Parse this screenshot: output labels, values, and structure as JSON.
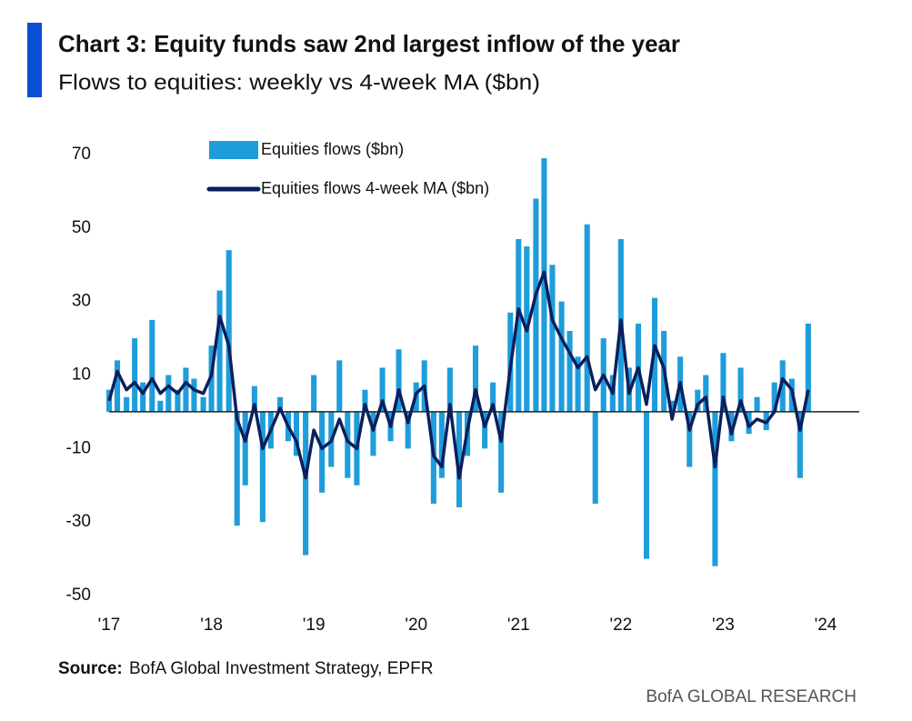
{
  "chart_data": {
    "type": "bar-line",
    "title": "Chart 3: Equity funds saw 2nd largest inflow of the year",
    "subtitle": "Flows to equities: weekly vs 4-week MA ($bn)",
    "source_label": "Source:",
    "source": "BofA Global Investment Strategy, EPFR",
    "credit": "BofA GLOBAL RESEARCH",
    "x": [
      2017.0,
      2017.08,
      2017.17,
      2017.25,
      2017.33,
      2017.42,
      2017.5,
      2017.58,
      2017.67,
      2017.75,
      2017.83,
      2017.92,
      2018.0,
      2018.08,
      2018.17,
      2018.25,
      2018.33,
      2018.42,
      2018.5,
      2018.58,
      2018.67,
      2018.75,
      2018.83,
      2018.92,
      2019.0,
      2019.08,
      2019.17,
      2019.25,
      2019.33,
      2019.42,
      2019.5,
      2019.58,
      2019.67,
      2019.75,
      2019.83,
      2019.92,
      2020.0,
      2020.08,
      2020.17,
      2020.25,
      2020.33,
      2020.42,
      2020.5,
      2020.58,
      2020.67,
      2020.75,
      2020.83,
      2020.92,
      2021.0,
      2021.08,
      2021.17,
      2021.25,
      2021.33,
      2021.42,
      2021.5,
      2021.58,
      2021.67,
      2021.75,
      2021.83,
      2021.92,
      2022.0,
      2022.08,
      2022.17,
      2022.25,
      2022.33,
      2022.42,
      2022.5,
      2022.58,
      2022.67,
      2022.75,
      2022.83,
      2022.92,
      2023.0,
      2023.08,
      2023.17,
      2023.25,
      2023.33,
      2023.42,
      2023.5,
      2023.58,
      2023.67,
      2023.75,
      2023.83
    ],
    "series": [
      {
        "name": "Equities flows ($bn)",
        "kind": "bar",
        "color": "#1f9ddb",
        "values": [
          6,
          14,
          4,
          20,
          8,
          25,
          3,
          10,
          6,
          12,
          9,
          4,
          18,
          33,
          44,
          -31,
          -20,
          7,
          -30,
          -10,
          4,
          -8,
          -12,
          -39,
          10,
          -22,
          -15,
          14,
          -18,
          -20,
          6,
          -12,
          12,
          -8,
          17,
          -10,
          8,
          14,
          -25,
          -18,
          12,
          -26,
          -12,
          18,
          -10,
          8,
          -22,
          27,
          47,
          45,
          58,
          69,
          40,
          30,
          22,
          15,
          51,
          -25,
          20,
          10,
          47,
          12,
          24,
          -40,
          31,
          22,
          3,
          15,
          -15,
          6,
          10,
          -42,
          16,
          -8,
          12,
          -6,
          4,
          -5,
          8,
          14,
          9,
          -18,
          24
        ]
      },
      {
        "name": "Equities flows 4-week MA ($bn)",
        "kind": "line",
        "color": "#0b1f5c",
        "values": [
          3,
          11,
          6,
          8,
          5,
          9,
          5,
          7,
          5,
          8,
          6,
          5,
          10,
          26,
          18,
          -2,
          -8,
          2,
          -10,
          -5,
          1,
          -4,
          -8,
          -18,
          -5,
          -10,
          -8,
          -2,
          -8,
          -10,
          2,
          -5,
          3,
          -4,
          6,
          -3,
          5,
          7,
          -12,
          -15,
          2,
          -18,
          -5,
          6,
          -4,
          2,
          -8,
          12,
          28,
          22,
          32,
          38,
          25,
          20,
          16,
          12,
          15,
          6,
          10,
          5,
          25,
          5,
          12,
          2,
          18,
          12,
          -2,
          8,
          -5,
          2,
          4,
          -15,
          4,
          -6,
          3,
          -4,
          -2,
          -3,
          0,
          9,
          6,
          -5,
          6
        ]
      }
    ],
    "xlim": [
      2017,
      2024
    ],
    "xticks": [
      {
        "value": 2017,
        "label": "'17"
      },
      {
        "value": 2018,
        "label": "'18"
      },
      {
        "value": 2019,
        "label": "'19"
      },
      {
        "value": 2020,
        "label": "'20"
      },
      {
        "value": 2021,
        "label": "'21"
      },
      {
        "value": 2022,
        "label": "'22"
      },
      {
        "value": 2023,
        "label": "'23"
      },
      {
        "value": 2024,
        "label": "'24"
      }
    ],
    "ylim": [
      -50,
      70
    ],
    "yticks": [
      -50,
      -30,
      -10,
      10,
      30,
      50,
      70
    ],
    "grid": false
  }
}
